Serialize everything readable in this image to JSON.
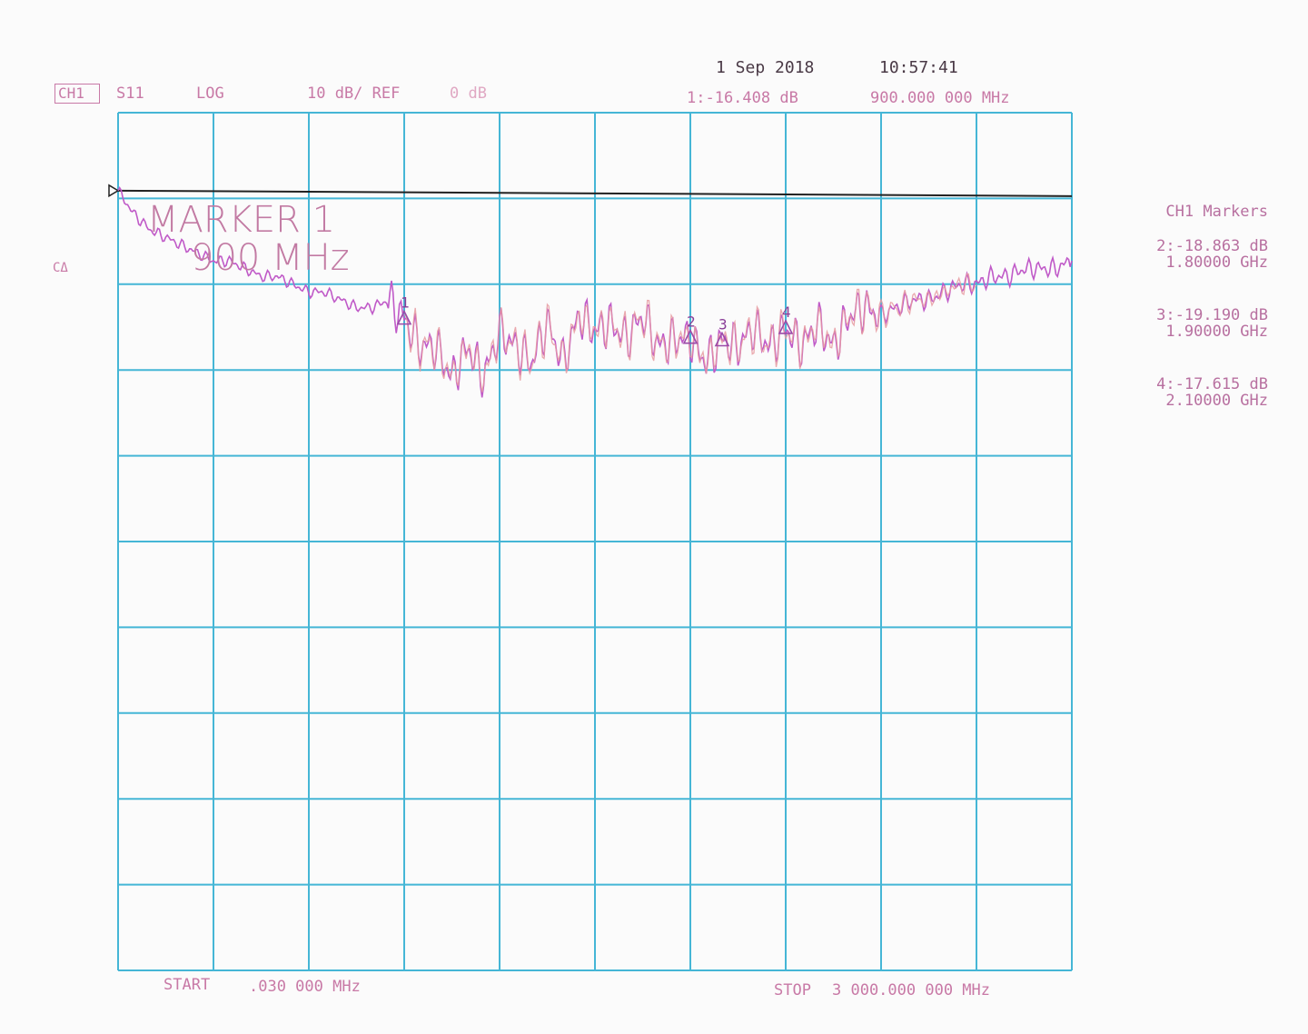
{
  "header": {
    "channel": "CH1",
    "parameter": "S11",
    "format": "LOG",
    "scale": "10 dB/ REF",
    "ref_value": "0 dB",
    "date": "1 Sep 2018",
    "time": "10:57:41",
    "marker_readout_value": "1:-16.408 dB",
    "marker_readout_freq": "900.000 000 MHz"
  },
  "left_annotation": "CΔ",
  "marker_box": {
    "line1": "MARKER 1",
    "line2": "900 MHz"
  },
  "side_panel": {
    "title": "CH1 Markers",
    "markers": [
      {
        "value": "2:-18.863 dB",
        "freq": "1.80000 GHz"
      },
      {
        "value": "3:-19.190 dB",
        "freq": "1.90000 GHz"
      },
      {
        "value": "4:-17.615 dB",
        "freq": "2.10000 GHz"
      }
    ]
  },
  "footer": {
    "start_label": "START",
    "start_value": ".030 000 MHz",
    "stop_label": "STOP",
    "stop_value": "3 000.000 000 MHz"
  },
  "trace_markers": [
    {
      "id": "1",
      "label": "1"
    },
    {
      "id": "2",
      "label": "2"
    },
    {
      "id": "3",
      "label": "3"
    },
    {
      "id": "4",
      "label": "4"
    }
  ],
  "chart_data": {
    "type": "line",
    "title": "",
    "xlabel": "",
    "ylabel": "",
    "x_unit": "MHz",
    "y_unit": "dB",
    "xlim": [
      0.03,
      3000
    ],
    "ylim": [
      -100,
      10
    ],
    "grid": true,
    "colors": {
      "grid": "#45b6d6",
      "reference": "#222222",
      "trace_a": "#c05ac8",
      "trace_b": "#e69aa0"
    },
    "reference_line": {
      "y": 0
    },
    "series": [
      {
        "x": [
          0.03,
          50,
          100,
          150,
          200,
          250,
          300,
          350,
          400,
          450,
          500,
          550,
          600,
          650,
          700,
          750,
          800,
          850,
          900,
          950,
          1000,
          1050,
          1100,
          1150,
          1200,
          1250,
          1300,
          1350,
          1400,
          1450,
          1500,
          1550,
          1600,
          1650,
          1700,
          1750,
          1800,
          1850,
          1900,
          1950,
          2000,
          2050,
          2100,
          2150,
          2200,
          2250,
          2300,
          2350,
          2400,
          2450,
          2500,
          2550,
          2600,
          2650,
          2700,
          2750,
          2800,
          2850,
          2900,
          2950,
          3000
        ],
        "y": [
          0,
          -3,
          -5,
          -6,
          -7,
          -8,
          -9,
          -9,
          -10,
          -11,
          -11,
          -12,
          -13,
          -13,
          -14,
          -15,
          -15,
          -14,
          -16.4,
          -20,
          -20,
          -24,
          -20,
          -24,
          -18,
          -20,
          -22,
          -17,
          -22,
          -16,
          -18,
          -17,
          -19,
          -16,
          -20,
          -19,
          -18.9,
          -22,
          -19.2,
          -20,
          -17.6,
          -20,
          -17.6,
          -20,
          -17,
          -20,
          -16,
          -15,
          -16,
          -15,
          -14,
          -14,
          -13,
          -12,
          -12,
          -11,
          -11,
          -10,
          -10,
          -10,
          -9
        ]
      }
    ],
    "markers": [
      {
        "label": "1",
        "x": 900,
        "y": -16.408
      },
      {
        "label": "2",
        "x": 1800,
        "y": -18.863
      },
      {
        "label": "3",
        "x": 1900,
        "y": -19.19
      },
      {
        "label": "4",
        "x": 2100,
        "y": -17.615
      }
    ]
  }
}
